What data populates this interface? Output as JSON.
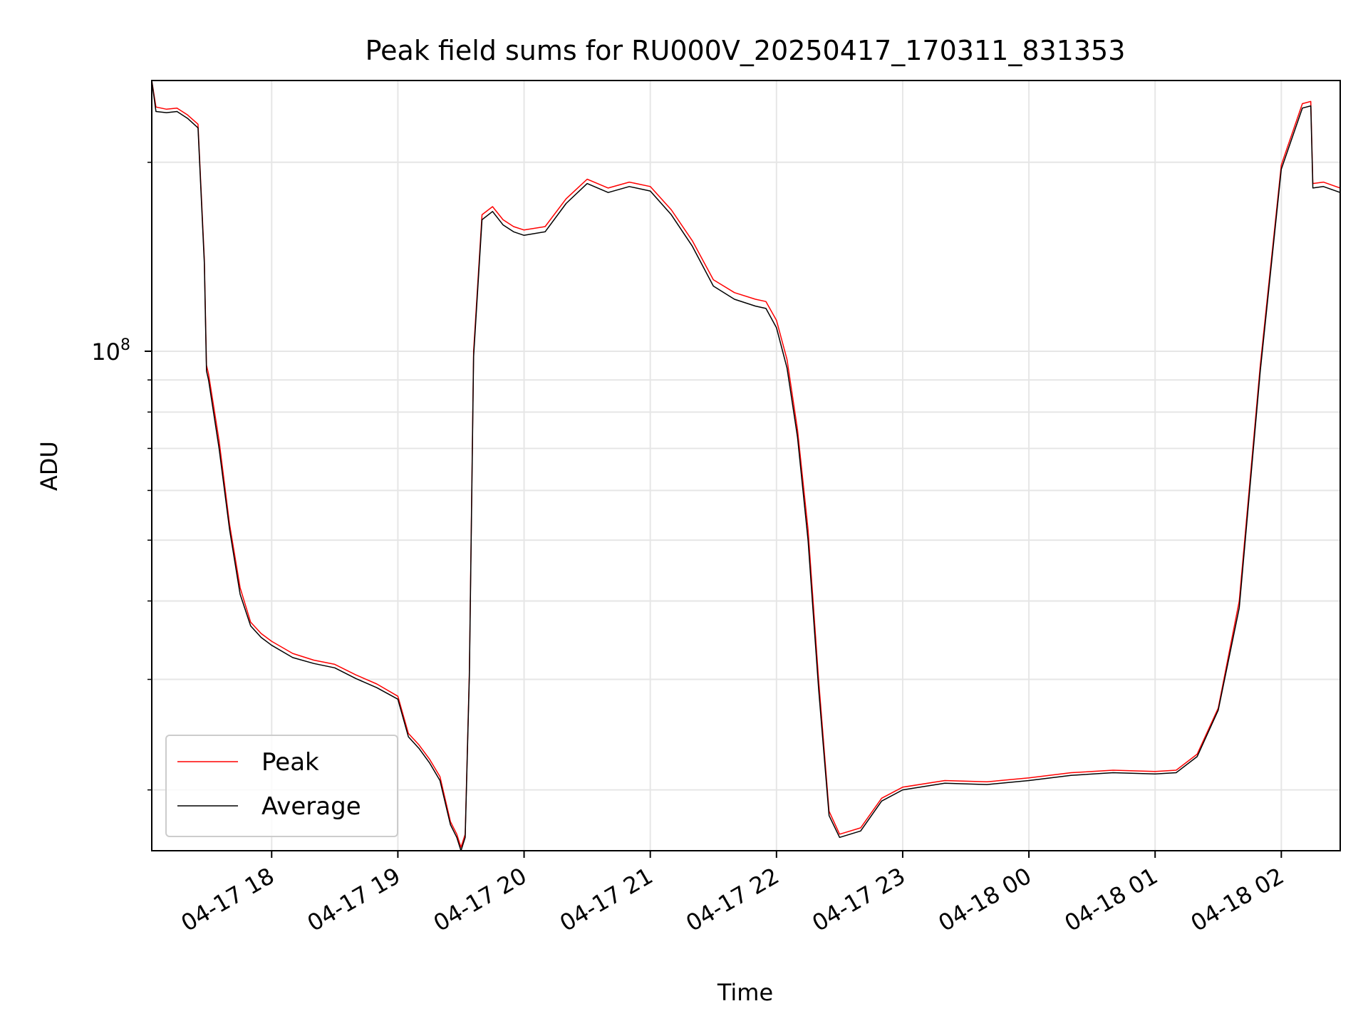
{
  "chart_data": {
    "type": "line",
    "title": "Peak field sums for RU000V_20250417_170311_831353",
    "xlabel": "Time",
    "ylabel": "ADU",
    "y_scale": "log",
    "ylim": [
      16000000,
      270000000
    ],
    "xlim": [
      "2025-04-17 17:03",
      "2025-04-18 02:28"
    ],
    "grid": true,
    "legend": {
      "location": "lower-left",
      "entries": [
        "Peak",
        "Average"
      ]
    },
    "x_ticks": [
      {
        "label": "04-17 18",
        "time": "2025-04-17 18:00"
      },
      {
        "label": "04-17 19",
        "time": "2025-04-17 19:00"
      },
      {
        "label": "04-17 20",
        "time": "2025-04-17 20:00"
      },
      {
        "label": "04-17 21",
        "time": "2025-04-17 21:00"
      },
      {
        "label": "04-17 22",
        "time": "2025-04-17 22:00"
      },
      {
        "label": "04-17 23",
        "time": "2025-04-17 23:00"
      },
      {
        "label": "04-18 00",
        "time": "2025-04-18 00:00"
      },
      {
        "label": "04-18 01",
        "time": "2025-04-18 01:00"
      },
      {
        "label": "04-18 02",
        "time": "2025-04-18 02:00"
      }
    ],
    "y_ticks": [
      {
        "label_base": "10",
        "label_exp": "8",
        "value": 100000000
      }
    ],
    "y_minor_ticks": [
      20000000,
      30000000,
      40000000,
      50000000,
      60000000,
      70000000,
      80000000,
      90000000,
      200000000
    ],
    "x": [
      "2025-04-17 17:03",
      "2025-04-17 17:05",
      "2025-04-17 17:10",
      "2025-04-17 17:15",
      "2025-04-17 17:20",
      "2025-04-17 17:25",
      "2025-04-17 17:28",
      "2025-04-17 17:29",
      "2025-04-17 17:30",
      "2025-04-17 17:35",
      "2025-04-17 17:40",
      "2025-04-17 17:45",
      "2025-04-17 17:50",
      "2025-04-17 17:55",
      "2025-04-17 18:00",
      "2025-04-17 18:10",
      "2025-04-17 18:20",
      "2025-04-17 18:30",
      "2025-04-17 18:40",
      "2025-04-17 18:50",
      "2025-04-17 19:00",
      "2025-04-17 19:05",
      "2025-04-17 19:10",
      "2025-04-17 19:15",
      "2025-04-17 19:20",
      "2025-04-17 19:25",
      "2025-04-17 19:28",
      "2025-04-17 19:30",
      "2025-04-17 19:32",
      "2025-04-17 19:34",
      "2025-04-17 19:36",
      "2025-04-17 19:40",
      "2025-04-17 19:45",
      "2025-04-17 19:50",
      "2025-04-17 19:55",
      "2025-04-17 20:00",
      "2025-04-17 20:10",
      "2025-04-17 20:20",
      "2025-04-17 20:30",
      "2025-04-17 20:40",
      "2025-04-17 20:50",
      "2025-04-17 21:00",
      "2025-04-17 21:10",
      "2025-04-17 21:20",
      "2025-04-17 21:30",
      "2025-04-17 21:40",
      "2025-04-17 21:50",
      "2025-04-17 21:55",
      "2025-04-17 22:00",
      "2025-04-17 22:05",
      "2025-04-17 22:10",
      "2025-04-17 22:15",
      "2025-04-17 22:20",
      "2025-04-17 22:25",
      "2025-04-17 22:30",
      "2025-04-17 22:40",
      "2025-04-17 22:50",
      "2025-04-17 23:00",
      "2025-04-17 23:20",
      "2025-04-17 23:40",
      "2025-04-18 00:00",
      "2025-04-18 00:20",
      "2025-04-18 00:40",
      "2025-04-18 01:00",
      "2025-04-18 01:10",
      "2025-04-18 01:20",
      "2025-04-18 01:30",
      "2025-04-18 01:40",
      "2025-04-18 01:50",
      "2025-04-18 02:00",
      "2025-04-18 02:10",
      "2025-04-18 02:14",
      "2025-04-18 02:15",
      "2025-04-18 02:20",
      "2025-04-18 02:28"
    ],
    "series": [
      {
        "name": "Peak",
        "color": "#ff0000",
        "values": [
          270000000,
          245000000,
          243000000,
          244000000,
          238000000,
          230000000,
          140000000,
          95000000,
          92000000,
          72000000,
          53000000,
          42000000,
          37000000,
          35500000,
          34500000,
          33000000,
          32200000,
          31700000,
          30500000,
          29500000,
          28200000,
          24600000,
          23600000,
          22400000,
          21000000,
          17800000,
          17000000,
          16200000,
          17000000,
          31000000,
          100000000,
          165000000,
          170000000,
          162000000,
          158000000,
          156000000,
          158000000,
          175000000,
          188000000,
          182000000,
          186000000,
          183000000,
          168000000,
          150000000,
          130000000,
          124000000,
          121000000,
          120000000,
          112000000,
          97000000,
          75000000,
          52000000,
          30000000,
          18500000,
          17000000,
          17400000,
          19400000,
          20200000,
          20700000,
          20600000,
          20900000,
          21300000,
          21500000,
          21400000,
          21500000,
          22800000,
          27000000,
          40000000,
          95000000,
          198000000,
          248000000,
          250000000,
          185000000,
          186000000,
          182000000
        ]
      },
      {
        "name": "Average",
        "color": "#000000",
        "values": [
          270000000,
          241000000,
          240000000,
          241000000,
          235000000,
          227000000,
          138000000,
          93000000,
          90000000,
          70000000,
          52000000,
          41000000,
          36500000,
          35000000,
          34000000,
          32500000,
          31800000,
          31300000,
          30100000,
          29100000,
          27900000,
          24300000,
          23300000,
          22100000,
          20700000,
          17600000,
          16800000,
          16000000,
          16800000,
          30500000,
          98000000,
          162000000,
          167000000,
          159000000,
          155000000,
          153000000,
          155000000,
          172000000,
          185000000,
          179000000,
          183000000,
          180000000,
          165000000,
          147000000,
          127000000,
          121000000,
          118000000,
          117000000,
          109000000,
          94000000,
          73000000,
          50000000,
          29000000,
          18200000,
          16800000,
          17200000,
          19200000,
          20000000,
          20500000,
          20400000,
          20700000,
          21100000,
          21300000,
          21200000,
          21300000,
          22600000,
          26800000,
          39000000,
          93000000,
          195000000,
          244000000,
          246000000,
          182000000,
          183000000,
          179000000
        ]
      }
    ]
  }
}
